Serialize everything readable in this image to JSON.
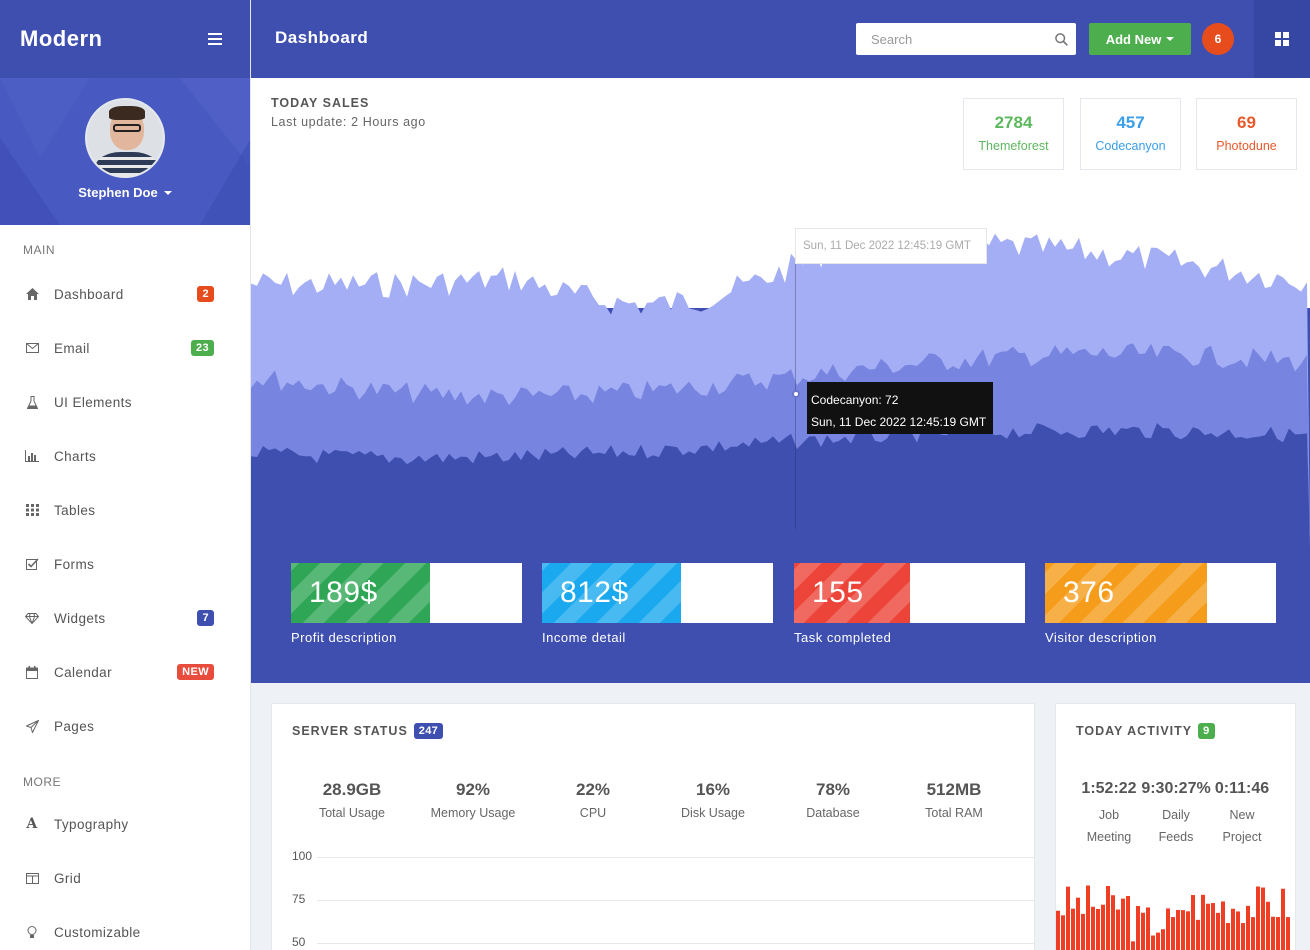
{
  "brand": {
    "name": "Modern"
  },
  "header": {
    "title": "Dashboard",
    "search_placeholder": "Search",
    "add_new_label": "Add New",
    "notification_count": "6"
  },
  "profile": {
    "name": "Stephen Doe"
  },
  "sidebar": {
    "main_heading": "MAIN",
    "more_heading": "MORE",
    "items": [
      {
        "label": "Dashboard",
        "icon": "home-icon",
        "badge": "2",
        "badge_color": "#e74c1c"
      },
      {
        "label": "Email",
        "icon": "envelope-icon",
        "badge": "23",
        "badge_color": "#4cae4c"
      },
      {
        "label": "UI Elements",
        "icon": "flask-icon",
        "badge": "",
        "badge_color": ""
      },
      {
        "label": "Charts",
        "icon": "bar-chart-icon",
        "badge": "",
        "badge_color": ""
      },
      {
        "label": "Tables",
        "icon": "table-icon",
        "badge": "",
        "badge_color": ""
      },
      {
        "label": "Forms",
        "icon": "checkbox-icon",
        "badge": "",
        "badge_color": ""
      },
      {
        "label": "Widgets",
        "icon": "diamond-icon",
        "badge": "7",
        "badge_color": "#3f4fb0"
      },
      {
        "label": "Calendar",
        "icon": "calendar-icon",
        "badge": "NEW",
        "badge_color": "#e74c3c"
      },
      {
        "label": "Pages",
        "icon": "paper-plane-icon",
        "badge": "",
        "badge_color": ""
      }
    ],
    "more_items": [
      {
        "label": "Typography",
        "icon": "font-icon"
      },
      {
        "label": "Grid",
        "icon": "columns-icon"
      },
      {
        "label": "Customizable",
        "icon": "bulb-icon"
      }
    ]
  },
  "today_sales": {
    "title": "TODAY SALES",
    "subtitle": "Last update: 2 Hours ago",
    "stats": [
      {
        "value": "2784",
        "label": "Themeforest",
        "color": "#5cb85c"
      },
      {
        "value": "457",
        "label": "Codecanyon",
        "color": "#3a9ee8"
      },
      {
        "value": "69",
        "label": "Photodune",
        "color": "#e8592b"
      }
    ],
    "tooltip": {
      "header": "Sun, 11 Dec 2022 12:45:19 GMT",
      "series_line": "Codecanyon: 72",
      "date_line": "Sun, 11 Dec 2022 12:45:19 GMT"
    }
  },
  "kpis": [
    {
      "value": "189$",
      "label": "Profit description",
      "color": "#2fa655",
      "fill": 0.6
    },
    {
      "value": "812$",
      "label": "Income detail",
      "color": "#1aa8ee",
      "fill": 0.6
    },
    {
      "value": "155",
      "label": "Task completed",
      "color": "#ec4439",
      "fill": 0.5
    },
    {
      "value": "376",
      "label": "Visitor description",
      "color": "#f59c1a",
      "fill": 0.7
    }
  ],
  "server_status": {
    "title": "SERVER STATUS",
    "badge": "247",
    "metrics": [
      {
        "value": "28.9GB",
        "label": "Total Usage"
      },
      {
        "value": "92%",
        "label": "Memory Usage"
      },
      {
        "value": "22%",
        "label": "CPU"
      },
      {
        "value": "16%",
        "label": "Disk Usage"
      },
      {
        "value": "78%",
        "label": "Database"
      },
      {
        "value": "512MB",
        "label": "Total RAM"
      }
    ],
    "y_ticks": [
      "100",
      "75",
      "50"
    ]
  },
  "today_activity": {
    "title": "TODAY ACTIVITY",
    "badge": "9",
    "items": [
      {
        "value": "1:52:22",
        "label1": "Job",
        "label2": "Meeting"
      },
      {
        "value": "9:30:27%",
        "label1": "Daily",
        "label2": "Feeds"
      },
      {
        "value": "0:11:46",
        "label1": "New",
        "label2": "Project"
      }
    ]
  },
  "colors": {
    "primary": "#3f4fb0",
    "wave_light": "#a4aef5",
    "wave_mid": "#7784e0",
    "activity_bar": "#ef3e24"
  }
}
